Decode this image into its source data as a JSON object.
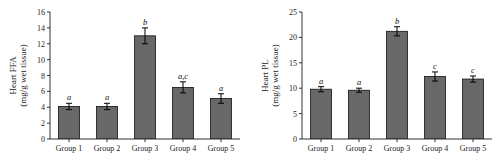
{
  "chart_data": [
    {
      "type": "bar",
      "categories": [
        "Group 1",
        "Group 2",
        "Group 3",
        "Group 4",
        "Group 5"
      ],
      "values": [
        4.1,
        4.1,
        13.0,
        6.5,
        5.1
      ],
      "errors": [
        0.4,
        0.4,
        1.0,
        0.7,
        0.6
      ],
      "annotations": [
        "a",
        "a",
        "b",
        "a,c",
        "a"
      ],
      "ylabel": "Heart FFA\n(mg/g wet tissue)",
      "ylim": [
        0,
        16
      ],
      "yticks": [
        0,
        2,
        4,
        6,
        8,
        10,
        12,
        14,
        16
      ],
      "color": "#686868",
      "grid": false
    },
    {
      "type": "bar",
      "categories": [
        "Group 1",
        "Group 2",
        "Group 3",
        "Group 4",
        "Group 5"
      ],
      "values": [
        9.8,
        9.6,
        21.2,
        12.3,
        11.8
      ],
      "errors": [
        0.5,
        0.4,
        0.9,
        0.9,
        0.6
      ],
      "annotations": [
        "a",
        "a",
        "b",
        "c",
        "c"
      ],
      "ylabel": "Heart PL\n(mg/g wet tissue)",
      "ylim": [
        0,
        25
      ],
      "yticks": [
        0,
        5,
        10,
        15,
        20,
        25
      ],
      "color": "#686868",
      "grid": false
    }
  ]
}
